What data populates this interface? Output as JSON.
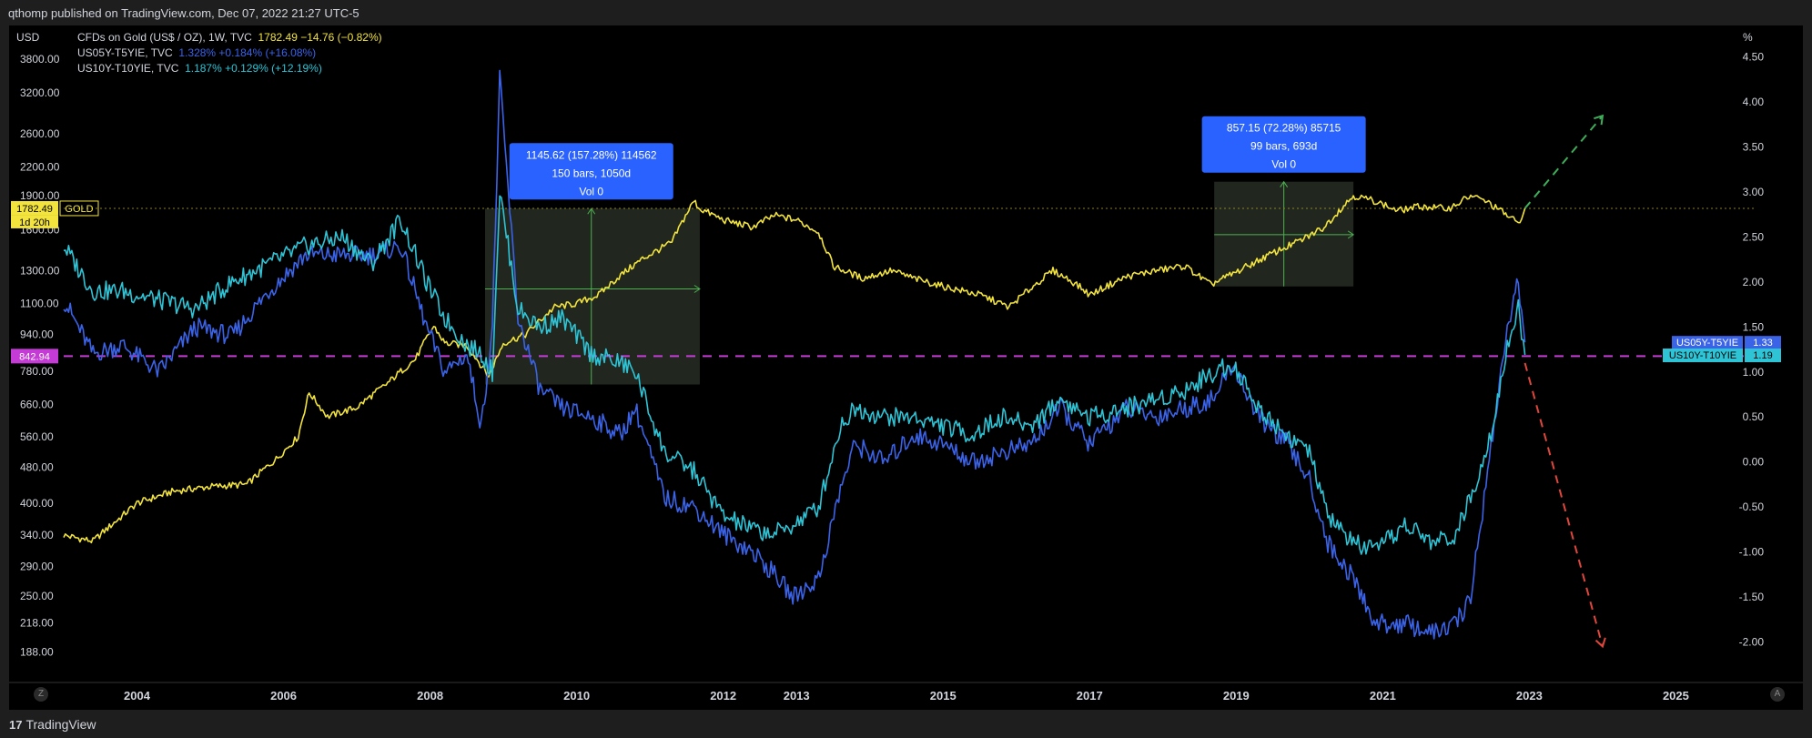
{
  "header": {
    "published_text": "qthomp published on TradingView.com, Dec 07, 2022 21:27 UTC-5"
  },
  "footer": {
    "brand": "TradingView",
    "logo_mark": "17",
    "z_button": "Z",
    "a_button": "A"
  },
  "legend": [
    {
      "name": "CFDs on Gold (US$ / OZ), 1W, TVC",
      "stats": "1782.49  −14.76 (−0.82%)",
      "color": "#f2e33d"
    },
    {
      "name": "US05Y-T5YIE, TVC",
      "stats": "1.328%  +0.184% (+16.08%)",
      "color": "#3a63e8"
    },
    {
      "name": "US10Y-T10YIE, TVC",
      "stats": "1.187%  +0.129% (+12.19%)",
      "color": "#2ec4d6"
    }
  ],
  "chart_data": {
    "type": "line",
    "title": "",
    "left_axis": {
      "unit_label": "USD",
      "scale": "log",
      "ticks": [
        "3800.00",
        "3200.00",
        "2600.00",
        "2200.00",
        "1900.00",
        "1600.00",
        "1300.00",
        "1100.00",
        "940.00",
        "780.00",
        "660.00",
        "560.00",
        "480.00",
        "400.00",
        "340.00",
        "290.00",
        "250.00",
        "218.00",
        "188.00"
      ],
      "range": [
        165,
        4300
      ]
    },
    "right_axis": {
      "unit_label": "%",
      "ticks": [
        "4.50",
        "4.00",
        "3.50",
        "3.00",
        "2.50",
        "2.00",
        "1.50",
        "1.00",
        "0.50",
        "0.00",
        "-0.50",
        "-1.00",
        "-1.50",
        "-2.00"
      ],
      "range": [
        -2.4,
        4.75
      ]
    },
    "x_axis": {
      "ticks": [
        "2004",
        "2006",
        "2008",
        "2010",
        "2012",
        "2013",
        "2015",
        "2017",
        "2019",
        "2021",
        "2023",
        "2025"
      ],
      "range": [
        2003.0,
        2026.1
      ]
    },
    "price_labels": {
      "gold_price": "1782.49",
      "gold_countdown": "1d 20h",
      "gold_tag": "GOLD",
      "horizontal_level": "842.94",
      "us05_name": "US05Y-T5YIE",
      "us05_value": "1.33",
      "us10_name": "US10Y-T10YIE",
      "us10_value": "1.19"
    },
    "horizontal_level": 842.94,
    "series": [
      {
        "name": "CFDs on Gold (US$ / OZ), 1W, TVC",
        "axis": "left",
        "color": "#f2e33d",
        "x": [
          2003.0,
          2003.4,
          2003.8,
          2004.0,
          2004.5,
          2005.0,
          2005.5,
          2005.9,
          2006.2,
          2006.35,
          2006.6,
          2007.0,
          2007.4,
          2007.8,
          2008.05,
          2008.2,
          2008.5,
          2008.8,
          2009.0,
          2009.3,
          2009.7,
          2010.0,
          2010.3,
          2010.6,
          2010.9,
          2011.3,
          2011.6,
          2011.68,
          2012.0,
          2012.4,
          2012.7,
          2013.0,
          2013.3,
          2013.5,
          2013.9,
          2014.3,
          2014.6,
          2015.0,
          2015.5,
          2015.9,
          2016.5,
          2016.8,
          2017.0,
          2017.5,
          2017.9,
          2018.3,
          2018.65,
          2019.0,
          2019.5,
          2019.9,
          2020.2,
          2020.6,
          2020.9,
          2021.2,
          2021.5,
          2021.9,
          2022.2,
          2022.4,
          2022.7,
          2022.85,
          2022.94
        ],
        "values": [
          340,
          330,
          375,
          400,
          425,
          435,
          440,
          500,
          560,
          700,
          620,
          650,
          730,
          830,
          980,
          900,
          890,
          760,
          900,
          940,
          1080,
          1100,
          1150,
          1270,
          1380,
          1500,
          1850,
          1780,
          1680,
          1620,
          1720,
          1680,
          1580,
          1330,
          1250,
          1300,
          1250,
          1200,
          1150,
          1080,
          1300,
          1220,
          1150,
          1260,
          1300,
          1330,
          1210,
          1290,
          1420,
          1520,
          1620,
          1900,
          1850,
          1760,
          1800,
          1780,
          1900,
          1850,
          1720,
          1650,
          1782
        ]
      },
      {
        "name": "US05Y-T5YIE",
        "axis": "right",
        "color": "#3a63e8",
        "x": [
          2003.0,
          2003.4,
          2003.8,
          2004.3,
          2004.8,
          2005.3,
          2005.8,
          2006.3,
          2006.8,
          2007.2,
          2007.6,
          2007.95,
          2008.2,
          2008.5,
          2008.7,
          2008.85,
          2008.95,
          2009.2,
          2009.5,
          2009.8,
          2010.2,
          2010.6,
          2010.8,
          2011.2,
          2011.6,
          2012.0,
          2012.4,
          2012.7,
          2012.95,
          2013.3,
          2013.6,
          2013.8,
          2014.2,
          2014.6,
          2015.0,
          2015.4,
          2015.8,
          2016.2,
          2016.6,
          2017.0,
          2017.5,
          2017.9,
          2018.3,
          2018.7,
          2018.95,
          2019.3,
          2019.7,
          2020.0,
          2020.25,
          2020.6,
          2020.9,
          2021.3,
          2021.7,
          2022.0,
          2022.2,
          2022.5,
          2022.7,
          2022.85,
          2022.94
        ],
        "values": [
          1.8,
          1.2,
          1.3,
          1.0,
          1.5,
          1.4,
          1.9,
          2.3,
          2.3,
          2.3,
          2.4,
          1.5,
          1.0,
          1.2,
          0.4,
          1.5,
          4.25,
          1.6,
          0.8,
          0.6,
          0.5,
          0.3,
          0.6,
          -0.4,
          -0.5,
          -0.8,
          -1.0,
          -1.25,
          -1.5,
          -1.3,
          -0.3,
          0.2,
          0.0,
          0.3,
          0.2,
          0.0,
          0.1,
          0.2,
          0.6,
          0.2,
          0.6,
          0.5,
          0.6,
          0.7,
          1.1,
          0.5,
          0.2,
          -0.2,
          -0.9,
          -1.3,
          -1.8,
          -1.8,
          -1.9,
          -1.8,
          -1.5,
          0.3,
          1.5,
          2.0,
          1.33
        ]
      },
      {
        "name": "US10Y-T10YIE",
        "axis": "right",
        "color": "#2ec4d6",
        "x": [
          2003.0,
          2003.4,
          2003.8,
          2004.3,
          2004.8,
          2005.3,
          2005.8,
          2006.3,
          2006.8,
          2007.2,
          2007.6,
          2007.95,
          2008.2,
          2008.5,
          2008.7,
          2008.85,
          2008.95,
          2009.2,
          2009.5,
          2009.8,
          2010.2,
          2010.6,
          2010.8,
          2011.2,
          2011.6,
          2012.0,
          2012.4,
          2012.7,
          2012.95,
          2013.3,
          2013.6,
          2013.8,
          2014.2,
          2014.6,
          2015.0,
          2015.4,
          2015.8,
          2016.2,
          2016.6,
          2017.0,
          2017.5,
          2017.9,
          2018.3,
          2018.7,
          2018.95,
          2019.3,
          2019.7,
          2020.0,
          2020.25,
          2020.6,
          2020.9,
          2021.3,
          2021.7,
          2022.0,
          2022.2,
          2022.5,
          2022.7,
          2022.85,
          2022.94
        ],
        "values": [
          2.4,
          1.9,
          1.9,
          1.8,
          1.7,
          2.0,
          2.2,
          2.4,
          2.5,
          2.2,
          2.7,
          2.0,
          1.6,
          1.3,
          1.2,
          1.0,
          3.0,
          1.7,
          1.5,
          1.6,
          1.2,
          1.1,
          1.0,
          0.1,
          -0.1,
          -0.6,
          -0.75,
          -0.8,
          -0.7,
          -0.5,
          0.4,
          0.6,
          0.5,
          0.5,
          0.4,
          0.3,
          0.5,
          0.4,
          0.7,
          0.5,
          0.6,
          0.7,
          0.8,
          1.0,
          1.1,
          0.6,
          0.3,
          0.1,
          -0.6,
          -0.9,
          -1.0,
          -0.7,
          -0.9,
          -0.8,
          -0.4,
          0.4,
          1.3,
          1.7,
          1.19
        ]
      }
    ],
    "annotations": [
      {
        "text_lines": [
          "1145.62 (157.28%) 114562",
          "150 bars, 1050d",
          "Vol 0"
        ],
        "box": {
          "x0": 2008.75,
          "x1": 2011.68,
          "y0": 730,
          "y1": 1780
        },
        "arrow_mid_x": 2010.2,
        "arrow_mid_y": 1185
      },
      {
        "text_lines": [
          "857.15 (72.28%) 85715",
          "99 bars, 693d",
          "Vol 0"
        ],
        "box": {
          "x0": 2018.7,
          "x1": 2020.6,
          "y0": 1200,
          "y1": 2040
        },
        "arrow_mid_x": 2019.65,
        "arrow_mid_y": 1560
      }
    ],
    "projections": [
      {
        "color": "#3fae5a",
        "from": [
          2022.94,
          1782.49
        ],
        "to": [
          2024.0,
          2850
        ],
        "axis": "left"
      },
      {
        "color": "#e0463c",
        "from": [
          2022.94,
          1.1
        ],
        "to": [
          2024.0,
          -2.05
        ],
        "axis": "right"
      }
    ],
    "grid": false
  }
}
